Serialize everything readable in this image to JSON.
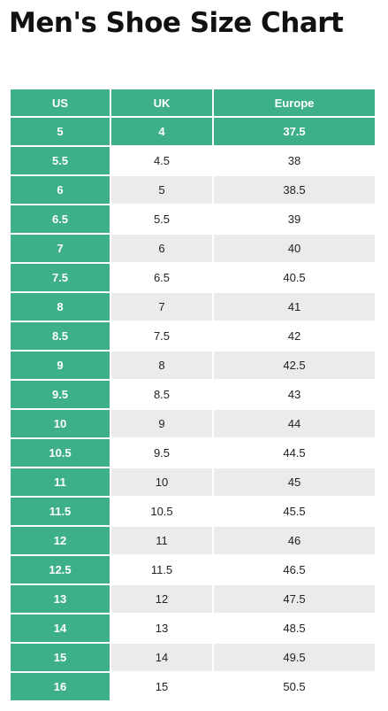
{
  "title": "Men's Shoe Size Chart",
  "colors": {
    "header_green": "#3db08a",
    "row_grey": "#ebebeb",
    "row_white": "#ffffff"
  },
  "table": {
    "headers": [
      "US",
      "UK",
      "Europe"
    ],
    "rows": [
      [
        "5",
        "4",
        "37.5"
      ],
      [
        "5.5",
        "4.5",
        "38"
      ],
      [
        "6",
        "5",
        "38.5"
      ],
      [
        "6.5",
        "5.5",
        "39"
      ],
      [
        "7",
        "6",
        "40"
      ],
      [
        "7.5",
        "6.5",
        "40.5"
      ],
      [
        "8",
        "7",
        "41"
      ],
      [
        "8.5",
        "7.5",
        "42"
      ],
      [
        "9",
        "8",
        "42.5"
      ],
      [
        "9.5",
        "8.5",
        "43"
      ],
      [
        "10",
        "9",
        "44"
      ],
      [
        "10.5",
        "9.5",
        "44.5"
      ],
      [
        "11",
        "10",
        "45"
      ],
      [
        "11.5",
        "10.5",
        "45.5"
      ],
      [
        "12",
        "11",
        "46"
      ],
      [
        "12.5",
        "11.5",
        "46.5"
      ],
      [
        "13",
        "12",
        "47.5"
      ],
      [
        "14",
        "13",
        "48.5"
      ],
      [
        "15",
        "14",
        "49.5"
      ],
      [
        "16",
        "15",
        "50.5"
      ]
    ]
  }
}
